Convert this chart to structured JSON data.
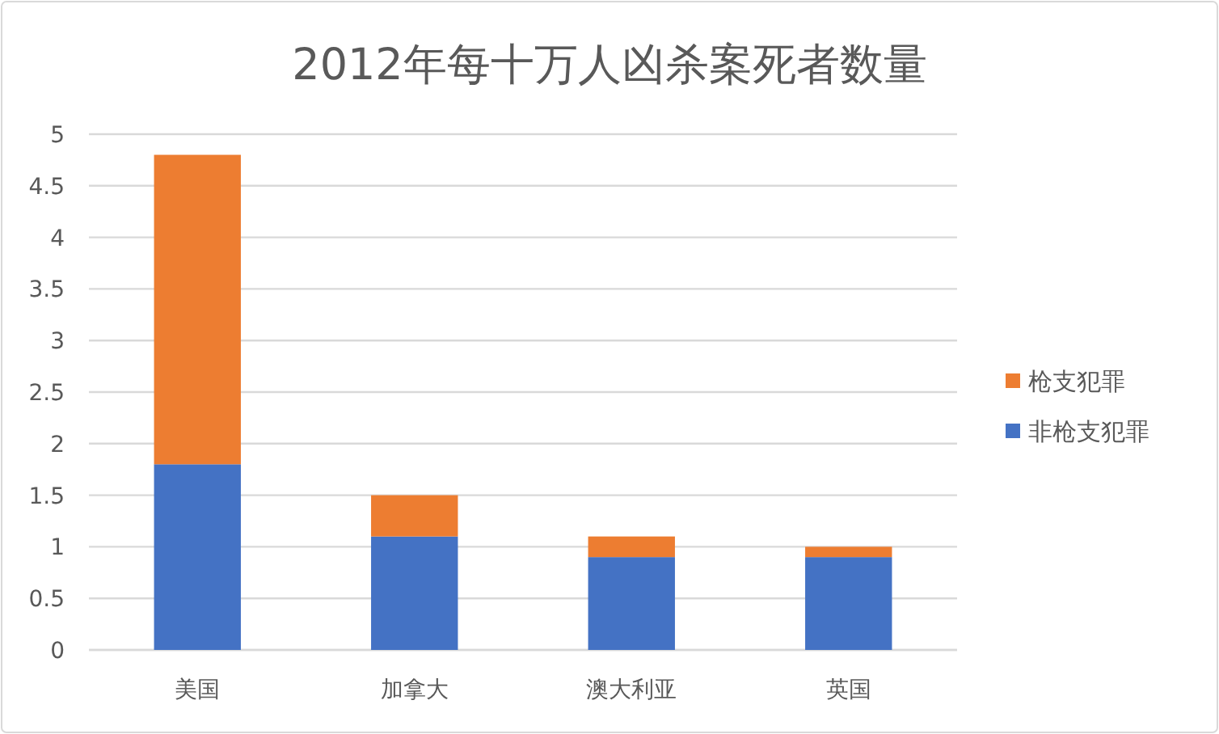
{
  "chart_data": {
    "type": "bar",
    "title": "2012年每十万人凶杀案死者数量",
    "categories": [
      "美国",
      "加拿大",
      "澳大利亚",
      "英国"
    ],
    "series": [
      {
        "name": "非枪支犯罪",
        "color": "#4472c4",
        "values": [
          1.8,
          1.1,
          0.9,
          0.9
        ]
      },
      {
        "name": "枪支犯罪",
        "color": "#ed7d31",
        "values": [
          3.0,
          0.4,
          0.2,
          0.1
        ]
      }
    ],
    "stacked": true,
    "ylim": [
      0,
      5
    ],
    "yticks": [
      0,
      0.5,
      1,
      1.5,
      2,
      2.5,
      3,
      3.5,
      4,
      4.5,
      5
    ],
    "grid": "y",
    "legend": "right"
  }
}
